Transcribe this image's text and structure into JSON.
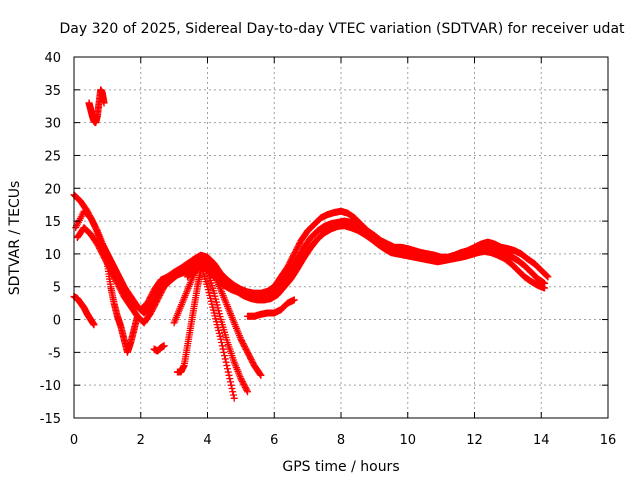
{
  "chart_data": {
    "type": "scatter",
    "title": "Day 320 of 2025, Sidereal Day-to-day VTEC variation (SDTVAR) for receiver udat",
    "xlabel": "GPS time / hours",
    "ylabel": "SDTVAR / TECUs",
    "xlim": [
      0,
      16
    ],
    "ylim": [
      -15,
      40
    ],
    "xticks": [
      0,
      2,
      4,
      6,
      8,
      10,
      12,
      14,
      16
    ],
    "yticks": [
      -15,
      -10,
      -5,
      0,
      5,
      10,
      15,
      20,
      25,
      30,
      35,
      40
    ],
    "grid": true,
    "marker": "+",
    "color": "#ff0000",
    "series": [
      {
        "name": "track-1",
        "x": [
          0.0,
          0.2,
          0.4,
          0.6,
          0.8,
          1.0,
          1.2,
          1.4,
          1.6,
          1.8,
          2.0,
          2.2,
          2.4,
          2.6,
          2.8,
          3.0,
          3.2,
          3.4,
          3.6,
          3.8,
          4.0,
          4.2,
          4.4,
          4.6,
          4.8,
          5.0,
          5.2,
          5.4,
          5.6,
          5.8,
          6.0,
          6.2,
          6.4,
          6.6,
          6.8,
          7.0,
          7.2,
          7.4,
          7.6,
          7.8,
          8.0,
          8.2,
          8.4,
          8.6,
          8.8,
          9.0,
          9.2,
          9.4,
          9.6,
          9.8,
          10.0,
          10.2,
          10.4,
          10.6,
          10.8,
          11.0,
          11.2,
          11.4,
          11.6,
          11.8,
          12.0,
          12.2,
          12.4,
          12.6,
          12.8,
          13.0,
          13.2,
          13.4,
          13.6,
          13.8,
          14.0,
          14.2
        ],
        "y": [
          19,
          18,
          16.5,
          14.5,
          12,
          10,
          8,
          6,
          4,
          2.5,
          1.5,
          2.5,
          4.5,
          6,
          6.5,
          7.2,
          7.8,
          8.5,
          9.2,
          9.8,
          9.5,
          8.5,
          7,
          6,
          5.2,
          4.6,
          4.2,
          4,
          4,
          4.3,
          5,
          6.5,
          8,
          10,
          12,
          13.5,
          14.5,
          15.5,
          16,
          16.3,
          16.5,
          16.2,
          15.5,
          14.5,
          13.5,
          12.8,
          12,
          11.5,
          11,
          11,
          10.8,
          10.5,
          10.2,
          10,
          9.8,
          9.5,
          9.5,
          9.8,
          10.2,
          10.5,
          11,
          11.5,
          11.8,
          11.5,
          11,
          10.8,
          10.5,
          10,
          9.2,
          8.5,
          7.5,
          6.5
        ]
      },
      {
        "name": "track-2",
        "x": [
          0.05,
          0.3,
          0.5,
          0.7,
          0.9,
          1.1,
          1.3,
          1.5,
          1.7,
          1.9,
          2.1,
          2.3,
          2.5,
          2.7,
          2.9,
          3.1,
          3.3,
          3.5,
          3.7,
          3.9,
          4.1,
          4.3,
          4.5,
          4.7,
          4.9,
          5.1,
          5.3,
          5.5,
          5.7,
          5.9,
          6.1,
          6.3,
          6.5,
          6.7,
          6.9,
          7.1,
          7.3,
          7.5,
          7.7,
          7.9,
          8.1,
          8.3,
          8.5,
          8.7,
          8.9,
          9.1,
          9.3,
          9.5,
          9.7,
          9.9,
          10.1,
          10.3,
          10.5,
          10.7,
          10.9,
          11.1,
          11.3,
          11.5,
          11.7,
          11.9,
          12.1,
          12.3,
          12.5,
          12.7,
          12.9,
          13.1,
          13.3,
          13.5,
          13.7,
          13.9,
          14.1
        ],
        "y": [
          14,
          16.5,
          15.5,
          13.5,
          11,
          9,
          7,
          5,
          3.5,
          2,
          1,
          2,
          4,
          5.5,
          6.2,
          7,
          7.5,
          8.2,
          8.8,
          9,
          8.2,
          7,
          6,
          5,
          4.5,
          4,
          3.6,
          3.5,
          3.6,
          4,
          4.8,
          6,
          7.5,
          9.2,
          11,
          12.5,
          13.5,
          14.2,
          14.6,
          14.8,
          15,
          14.8,
          14.2,
          13.5,
          12.8,
          12,
          11.2,
          10.8,
          10.5,
          10.3,
          10.2,
          10,
          9.8,
          9.6,
          9.4,
          9.3,
          9.4,
          9.6,
          9.9,
          10.2,
          10.5,
          10.8,
          10.8,
          10.4,
          10,
          9.6,
          9,
          8.2,
          7.2,
          6.2,
          5.5
        ]
      },
      {
        "name": "track-3",
        "x": [
          0.1,
          0.3,
          0.5,
          0.7,
          0.9,
          1.1,
          1.3,
          1.5,
          1.7,
          1.9,
          2.1,
          2.3,
          2.5,
          2.7,
          2.9,
          3.1,
          3.3,
          3.5,
          3.7,
          3.9,
          4.1,
          4.3,
          4.5,
          4.7,
          4.9,
          5.1,
          5.3,
          5.5,
          5.7,
          5.9,
          6.1,
          6.3,
          6.5,
          6.7,
          6.9,
          7.1,
          7.3,
          7.5,
          7.7,
          7.9,
          8.1,
          8.3,
          8.5,
          8.7,
          8.9,
          9.1,
          9.3,
          9.5,
          9.7,
          9.9,
          10.1,
          10.3,
          10.5,
          10.7,
          10.9,
          11.1,
          11.3,
          11.5,
          11.7,
          11.9,
          12.1,
          12.3,
          12.5,
          12.7,
          12.9,
          13.1,
          13.3,
          13.5,
          13.7,
          13.9,
          14.1
        ],
        "y": [
          12.5,
          14,
          13,
          11.5,
          9.5,
          7.5,
          5.5,
          3.5,
          2,
          0.5,
          -0.5,
          1,
          3,
          5,
          6,
          6.8,
          7.2,
          7.8,
          8.2,
          8,
          7,
          6,
          5.2,
          4.6,
          4.2,
          3.6,
          3.2,
          3,
          3,
          3.2,
          3.8,
          5,
          6.2,
          7.8,
          9.5,
          11,
          12.3,
          13.2,
          13.8,
          14.2,
          14.3,
          14,
          13.6,
          13,
          12.3,
          11.5,
          10.8,
          10.2,
          10,
          9.8,
          9.6,
          9.4,
          9.2,
          9,
          8.8,
          9,
          9.2,
          9.4,
          9.6,
          9.9,
          10.2,
          10.4,
          10.2,
          9.8,
          9.3,
          8.5,
          7.5,
          6.5,
          5.8,
          5.2,
          4.8
        ]
      },
      {
        "name": "track-4",
        "x": [
          0.0,
          0.1,
          0.2,
          0.3,
          0.4,
          0.5,
          0.6
        ],
        "y": [
          3.5,
          3.2,
          2.5,
          1.8,
          0.8,
          0,
          -0.8
        ]
      },
      {
        "name": "track-5",
        "x": [
          0.45,
          0.5,
          0.55,
          0.6,
          0.65,
          0.7,
          0.75,
          0.8,
          0.85,
          0.9
        ],
        "y": [
          33,
          32,
          31,
          30.2,
          30,
          31,
          33,
          35,
          34.5,
          33
        ]
      },
      {
        "name": "track-6",
        "x": [
          1.0,
          1.1,
          1.2,
          1.3,
          1.4,
          1.5,
          1.6,
          1.7,
          1.8,
          1.9
        ],
        "y": [
          8.5,
          5,
          2.5,
          0.5,
          -1,
          -3,
          -5,
          -3.5,
          -1.5,
          0.5
        ]
      },
      {
        "name": "track-7",
        "x": [
          2.4,
          2.5,
          2.6,
          2.7
        ],
        "y": [
          -4.5,
          -4.8,
          -4.3,
          -4
        ]
      },
      {
        "name": "track-8",
        "x": [
          3.1,
          3.2,
          3.3,
          3.4,
          3.5,
          3.6,
          3.7,
          3.8
        ],
        "y": [
          -8,
          -8,
          -7,
          -4,
          -1,
          2,
          5,
          7.5
        ]
      },
      {
        "name": "track-9",
        "x": [
          3.0,
          3.2,
          3.4,
          3.6,
          3.8,
          4.0,
          4.2,
          4.4,
          4.6,
          4.8
        ],
        "y": [
          -0.5,
          2,
          4.5,
          7,
          8.5,
          5,
          1,
          -3,
          -7.5,
          -12
        ]
      },
      {
        "name": "track-10",
        "x": [
          3.4,
          3.6,
          3.8,
          4.0,
          4.2,
          4.4,
          4.6,
          4.8,
          5.0,
          5.2
        ],
        "y": [
          6.5,
          8,
          9,
          7.5,
          4,
          0,
          -3.5,
          -6.5,
          -9,
          -11
        ]
      },
      {
        "name": "track-11",
        "x": [
          3.8,
          4.0,
          4.2,
          4.4,
          4.6,
          4.8,
          5.0,
          5.2,
          5.4,
          5.6
        ],
        "y": [
          9.5,
          9,
          7,
          4.5,
          2,
          -0.5,
          -3,
          -5,
          -7,
          -8.5
        ]
      },
      {
        "name": "track-12",
        "x": [
          5.2,
          5.4,
          5.6,
          5.8,
          6.0,
          6.2,
          6.4,
          6.6
        ],
        "y": [
          0.5,
          0.5,
          0.8,
          1,
          1,
          1.5,
          2.5,
          3
        ]
      }
    ]
  }
}
